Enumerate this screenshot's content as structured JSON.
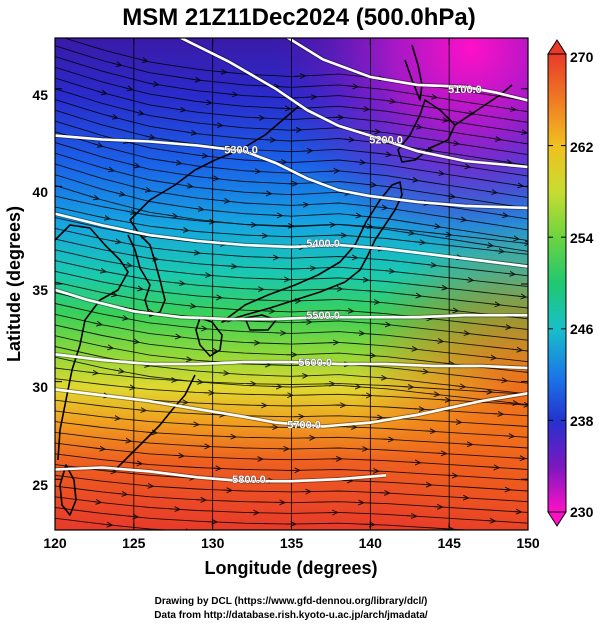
{
  "title": "MSM 21Z11Dec2024 (500.0hPa)",
  "xlabel": "Longitude (degrees)",
  "ylabel": "Latitude  (degrees)",
  "credits": {
    "line1": "Drawing by DCL (https://www.gfd-dennou.org/library/dcl/)",
    "line2": "Data from http://database.rish.kyoto-u.ac.jp/arch/jmadata/"
  },
  "map": {
    "lon_range": [
      120,
      150
    ],
    "lat_range": [
      22.4,
      47.6
    ],
    "x_ticks": [
      120,
      125,
      130,
      135,
      140,
      145,
      150
    ],
    "y_ticks": [
      25,
      30,
      35,
      40,
      45
    ],
    "x_tick_labels": [
      "120",
      "125",
      "130",
      "135",
      "140",
      "145",
      "150"
    ],
    "y_tick_labels": [
      "25",
      "30",
      "35",
      "40",
      "45"
    ]
  },
  "colorbar": {
    "min": 230,
    "max": 270,
    "tick_values": [
      230,
      238,
      246,
      254,
      262,
      270
    ],
    "tick_labels": [
      "230",
      "238",
      "246",
      "254",
      "262",
      "270"
    ]
  },
  "contours": [
    {
      "label": "5100.0",
      "label_pos": [
        146.0,
        45.0
      ],
      "points": [
        [
          134,
          48.0
        ],
        [
          137,
          46.5
        ],
        [
          140,
          45.6
        ],
        [
          143,
          45.2
        ],
        [
          146,
          45.1
        ],
        [
          148,
          44.8
        ],
        [
          150,
          44.4
        ]
      ]
    },
    {
      "label": "5200.0",
      "label_pos": [
        141.0,
        42.4
      ],
      "points": [
        [
          128,
          47.6
        ],
        [
          131,
          46.4
        ],
        [
          134,
          45.0
        ],
        [
          136,
          43.9
        ],
        [
          138,
          43.1
        ],
        [
          140,
          42.6
        ],
        [
          143,
          41.8
        ],
        [
          146,
          41.3
        ],
        [
          150,
          41.0
        ]
      ]
    },
    {
      "label": "5300.0",
      "label_pos": [
        131.8,
        41.9
      ],
      "points": [
        [
          120,
          42.6
        ],
        [
          123,
          42.4
        ],
        [
          126,
          42.3
        ],
        [
          129,
          42.1
        ],
        [
          132,
          41.8
        ],
        [
          134,
          41.2
        ],
        [
          136,
          40.4
        ],
        [
          138,
          39.8
        ],
        [
          140,
          39.5
        ],
        [
          143,
          39.2
        ],
        [
          146,
          39.0
        ],
        [
          150,
          38.9
        ]
      ]
    },
    {
      "label": "5400.0",
      "label_pos": [
        137.0,
        37.1
      ],
      "points": [
        [
          120,
          38.6
        ],
        [
          123,
          38.0
        ],
        [
          126,
          37.5
        ],
        [
          129,
          37.2
        ],
        [
          132,
          37.0
        ],
        [
          135,
          36.9
        ],
        [
          138,
          37.0
        ],
        [
          141,
          36.8
        ],
        [
          144,
          36.5
        ],
        [
          147,
          36.2
        ],
        [
          150,
          35.9
        ]
      ]
    },
    {
      "label": "5500.0",
      "label_pos": [
        137.0,
        33.4
      ],
      "points": [
        [
          120,
          34.7
        ],
        [
          122,
          34.2
        ],
        [
          125,
          33.6
        ],
        [
          128,
          33.3
        ],
        [
          131,
          33.2
        ],
        [
          134,
          33.2
        ],
        [
          137,
          33.3
        ],
        [
          140,
          33.3
        ],
        [
          143,
          33.3
        ],
        [
          146,
          33.4
        ],
        [
          150,
          33.4
        ]
      ]
    },
    {
      "label": "5600.0",
      "label_pos": [
        136.5,
        31.0
      ],
      "points": [
        [
          120,
          31.4
        ],
        [
          123,
          31.1
        ],
        [
          126,
          30.9
        ],
        [
          129,
          30.9
        ],
        [
          132,
          31.0
        ],
        [
          135,
          31.0
        ],
        [
          138,
          30.9
        ],
        [
          141,
          30.9
        ],
        [
          144,
          30.8
        ],
        [
          147,
          30.8
        ],
        [
          150,
          30.7
        ]
      ]
    },
    {
      "label": "5700.0",
      "label_pos": [
        135.8,
        27.8
      ],
      "points": [
        [
          120,
          29.6
        ],
        [
          123,
          29.3
        ],
        [
          126,
          29.0
        ],
        [
          129,
          28.6
        ],
        [
          132,
          28.2
        ],
        [
          134,
          27.9
        ],
        [
          137,
          27.7
        ],
        [
          140,
          27.9
        ],
        [
          143,
          28.3
        ],
        [
          147,
          29.0
        ],
        [
          150,
          29.4
        ]
      ]
    },
    {
      "label": "5800.0",
      "label_pos": [
        132.3,
        25.0
      ],
      "points": [
        [
          120,
          25.5
        ],
        [
          123,
          25.6
        ],
        [
          126,
          25.4
        ],
        [
          129,
          25.1
        ],
        [
          132,
          24.9
        ],
        [
          135,
          24.9
        ],
        [
          138,
          25.0
        ],
        [
          141,
          25.2
        ]
      ]
    }
  ]
}
